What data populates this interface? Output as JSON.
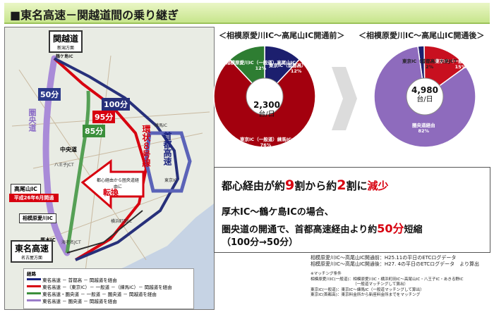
{
  "title": "■東名高速－関越道間の乗り継ぎ",
  "map": {
    "kanetsu": "関越道",
    "kanetsu_dir": "新潟方面",
    "tsurugashima": "鶴ケ島IC",
    "ken_o_do": "圏央道",
    "chuo": "中央道",
    "route8": "環状８号線",
    "shuto": "首都高速",
    "nerima": "練馬IC",
    "tokyo_ic": "東京IC",
    "takao": "高尾山IC",
    "open_note": "平成26年6月開通",
    "sagamihara": "相模原愛川IC",
    "atsugi": "厚木IC",
    "tomei": "東名高速",
    "tomei_dir": "名古屋方面",
    "ebina": "海老名JCT",
    "yokohama": "横浜町田IC",
    "hachioji": "八王子JCT",
    "switch_text": "都心経由から圏央道経由に",
    "switch_big": "転換",
    "time_50": "50分",
    "time_100": "100分",
    "time_95": "95分",
    "time_85": "85分",
    "legend_title": "経路",
    "legend": [
      {
        "text": "東名高速 － 首都高 － 関越道を経由",
        "color": "#1a237e"
      },
      {
        "text": "東名高速 －（東京IC）－ 一般道 －（練馬IC）－ 関越道を経由",
        "color": "#d7000f"
      },
      {
        "text": "東名高速・圏央道 － 一般道 － 圏央道 － 関越道を経由",
        "color": "#3b8f3b"
      },
      {
        "text": "東名高速 － 圏央道 － 関越道を経由",
        "color": "#9a7cc9"
      }
    ]
  },
  "before": {
    "title": "＜相模原愛川IC～高尾山IC開通前＞",
    "center_value": "2,300",
    "center_unit": "台/日",
    "slices": [
      {
        "name": "東京IC（一般道）練馬IC",
        "pct": "76%",
        "value": 76,
        "color": "#a3000e"
      },
      {
        "name": "東京IC（首都高）大泉JCT",
        "pct": "12%",
        "value": 12,
        "color": "#1c1f6e"
      },
      {
        "name": "相模原愛川IC（一般道）高尾山IC",
        "pct": "12%",
        "value": 12,
        "color": "#2e7d32"
      }
    ]
  },
  "after": {
    "title": "＜相模原愛川IC～高尾山IC開通後＞",
    "center_value": "4,980",
    "center_unit": "台/日",
    "slices": [
      {
        "name": "圏央道経由",
        "pct": "82%",
        "value": 82,
        "color": "#8e6bbd"
      },
      {
        "name": "東京IC（一般道）練馬IC",
        "pct": "15%",
        "value": 15,
        "color": "#c8101f"
      },
      {
        "name": "東京IC（首都高）大泉JCT",
        "pct": "2%",
        "value": 2,
        "color": "#1c1f6e"
      }
    ]
  },
  "summary": {
    "l1a": "都心経由が約",
    "l1b": "9",
    "l1c": "割から約",
    "l1d": "2",
    "l1e": "割に",
    "l1f": "減少",
    "l2": "厚木IC～鶴ケ島ICの場合、",
    "l3a": "圏央道の開通で、首都高速経由より約",
    "l3b": "50分",
    "l3c": "短縮",
    "l4": "（100分→50分）"
  },
  "notes": {
    "n1": "相模原愛川IC～高尾山IC開通前：H25.11の平日のETCログデータ",
    "n2": "相模原愛川IC～高尾山IC開通後：H27. 4の平日のETCログデータ　より算出",
    "n3": "※マッチング条件",
    "n4": "相模原愛川IC(一般道)：相模原愛川IC・横浜町田IC～高尾山IC・八王子IC・あきる野IC",
    "n5": "（一般道マッチングして算出）",
    "n6": "東京IC(一般道)：東京IC～練馬IC（一般道マッチングして算出）",
    "n7": "東京IC(首都高)：東京料金所から新座料金所までをマッチング"
  }
}
